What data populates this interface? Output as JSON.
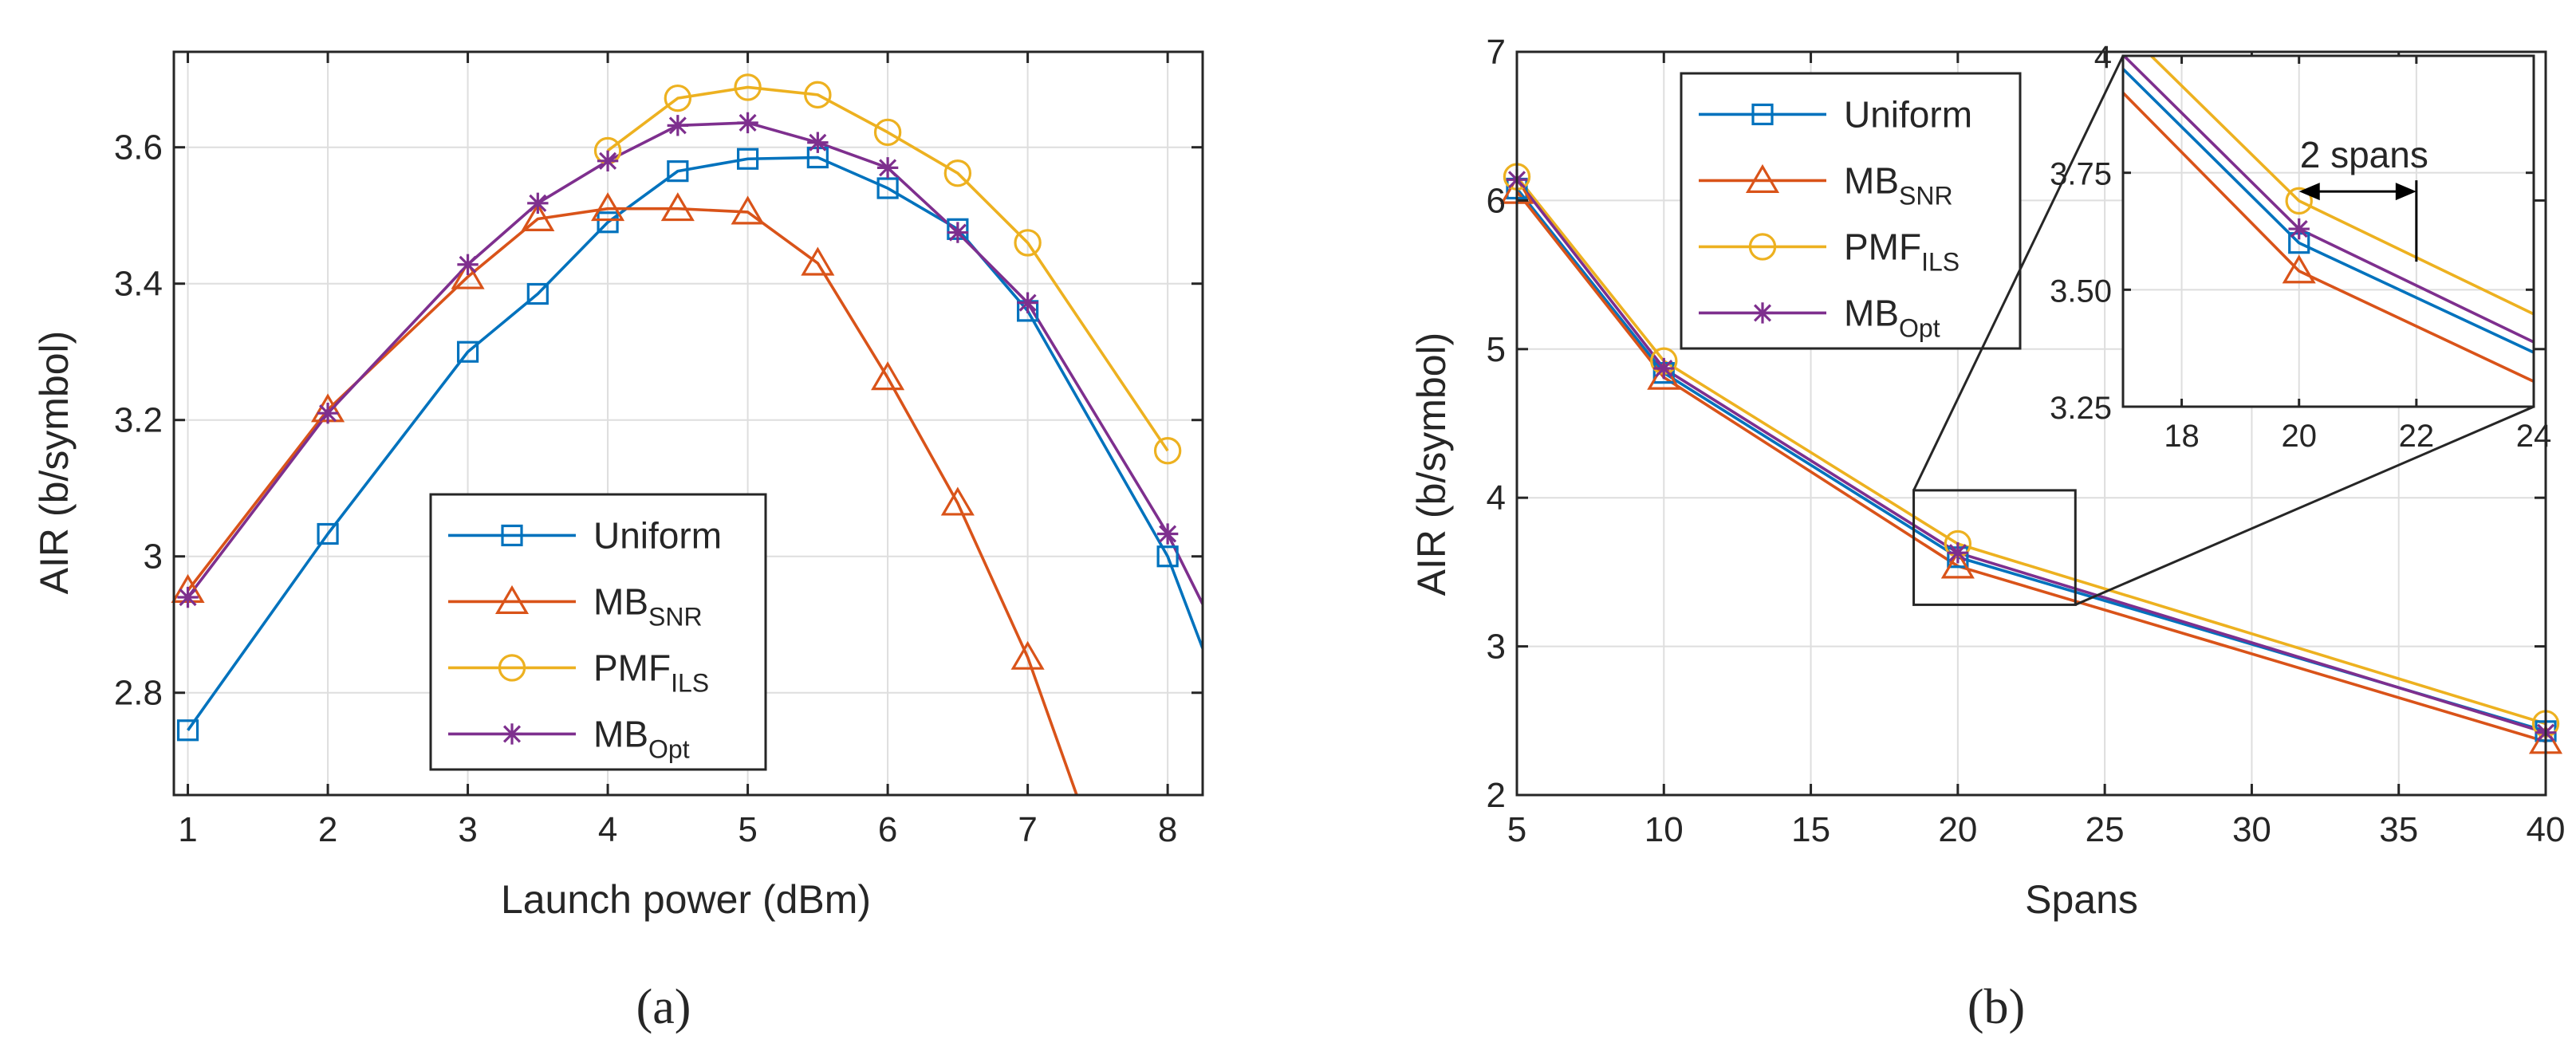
{
  "chart_data": [
    {
      "type": "line",
      "panel": "(a)",
      "xlabel": "Launch power (dBm)",
      "ylabel": "AIR (b/symbol)",
      "xlim": [
        0.9,
        8.25
      ],
      "ylim": [
        2.65,
        3.74
      ],
      "xticks": [
        1,
        2,
        3,
        4,
        5,
        6,
        7,
        8
      ],
      "xtick_labels": [
        "1",
        "2",
        "3",
        "4",
        "5",
        "6",
        "7",
        "8"
      ],
      "yticks": [
        2.8,
        3.0,
        3.2,
        3.4,
        3.6
      ],
      "ytick_labels": [
        "2.8",
        "3",
        "3.2",
        "3.4",
        "3.6"
      ],
      "grid": true,
      "legend_position": "lower-center",
      "series": [
        {
          "name": "Uniform",
          "base": "Uniform",
          "sub": "",
          "color": "#0072BD",
          "marker": "square",
          "x": [
            1,
            2,
            3,
            3.5,
            4,
            4.5,
            5,
            5.5,
            6,
            6.5,
            7,
            8
          ],
          "y": [
            2.745,
            3.033,
            3.3,
            3.385,
            3.49,
            3.565,
            3.583,
            3.585,
            3.54,
            3.48,
            3.36,
            3.0
          ],
          "line_end": {
            "x": 8.25,
            "y": 2.865
          }
        },
        {
          "name": "MB_SNR",
          "base": "MB",
          "sub": "SNR",
          "color": "#D95319",
          "marker": "triangle",
          "x": [
            1,
            2,
            3,
            3.5,
            4,
            4.5,
            5,
            5.5,
            6,
            6.5,
            7
          ],
          "y": [
            2.95,
            3.215,
            3.41,
            3.495,
            3.51,
            3.51,
            3.505,
            3.43,
            3.262,
            3.078,
            2.852
          ],
          "line_end": {
            "x": 7.35,
            "y": 2.65
          }
        },
        {
          "name": "PMF_ILS",
          "base": "PMF",
          "sub": "ILS",
          "color": "#EDB120",
          "marker": "circle",
          "x": [
            4,
            4.5,
            5,
            5.5,
            6,
            6.5,
            7,
            8
          ],
          "y": [
            3.595,
            3.672,
            3.688,
            3.677,
            3.622,
            3.562,
            3.46,
            3.155
          ]
        },
        {
          "name": "MB_Opt",
          "base": "MB",
          "sub": "Opt",
          "color": "#7E2F8E",
          "marker": "asterisk",
          "x": [
            1,
            2,
            3,
            3.5,
            4,
            4.5,
            5,
            5.5,
            6,
            6.5,
            7,
            8
          ],
          "y": [
            2.94,
            3.21,
            3.428,
            3.518,
            3.58,
            3.632,
            3.636,
            3.607,
            3.57,
            3.475,
            3.372,
            3.033
          ],
          "line_end": {
            "x": 8.25,
            "y": 2.93
          }
        }
      ]
    },
    {
      "type": "line",
      "panel": "(b)",
      "xlabel": "Spans",
      "ylabel": "AIR (b/symbol)",
      "xlim": [
        5,
        40
      ],
      "ylim": [
        2,
        7
      ],
      "xticks": [
        5,
        10,
        15,
        20,
        25,
        30,
        35,
        40
      ],
      "xtick_labels": [
        "5",
        "10",
        "15",
        "20",
        "25",
        "30",
        "35",
        "40"
      ],
      "yticks": [
        2,
        3,
        4,
        5,
        6,
        7
      ],
      "ytick_labels": [
        "2",
        "3",
        "4",
        "5",
        "6",
        "7"
      ],
      "grid": true,
      "legend_position": "top-left",
      "series": [
        {
          "name": "Uniform",
          "base": "Uniform",
          "sub": "",
          "color": "#0072BD",
          "marker": "square",
          "x": [
            5,
            10,
            20,
            40
          ],
          "y": [
            6.08,
            4.84,
            3.6,
            2.43
          ]
        },
        {
          "name": "MB_SNR",
          "base": "MB",
          "sub": "SNR",
          "color": "#D95319",
          "marker": "triangle",
          "x": [
            5,
            10,
            20,
            40
          ],
          "y": [
            6.06,
            4.81,
            3.54,
            2.36
          ]
        },
        {
          "name": "PMF_ILS",
          "base": "PMF",
          "sub": "ILS",
          "color": "#EDB120",
          "marker": "circle",
          "x": [
            5,
            10,
            20,
            40
          ],
          "y": [
            6.16,
            4.92,
            3.69,
            2.48
          ]
        },
        {
          "name": "MB_Opt",
          "base": "MB",
          "sub": "Opt",
          "color": "#7E2F8E",
          "marker": "asterisk",
          "x": [
            5,
            10,
            20,
            40
          ],
          "y": [
            6.14,
            4.87,
            3.63,
            2.42
          ]
        }
      ],
      "zoom_box": {
        "xlim": [
          18.5,
          24
        ],
        "ylim": [
          3.28,
          4.05
        ]
      },
      "inset": {
        "xlim": [
          17,
          24
        ],
        "ylim": [
          3.25,
          4.0
        ],
        "xticks": [
          18,
          20,
          22,
          24
        ],
        "xtick_labels": [
          "18",
          "20",
          "22",
          "24"
        ],
        "yticks": [
          3.25,
          3.5,
          3.75,
          4.0
        ],
        "ytick_labels": [
          "3.25",
          "3.50",
          "3.75",
          "4"
        ],
        "annotation": "2 spans",
        "arrow_from_x": 20,
        "arrow_to_x": 22,
        "arrow_y": 3.71
      }
    }
  ]
}
